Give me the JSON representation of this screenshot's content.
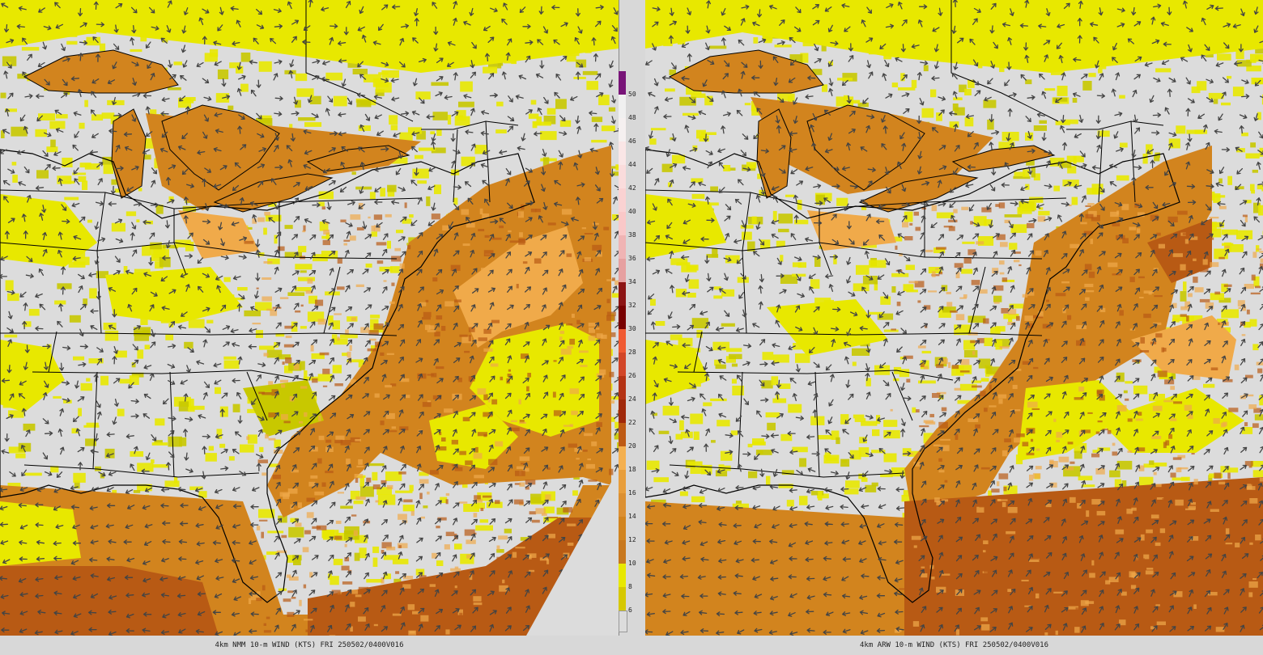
{
  "panels": [
    {
      "id": "nmm",
      "caption": "4km NMM 10-m WIND (KTS) FRI 250502/0400V016"
    },
    {
      "id": "arw",
      "caption": "4km ARW 10-m WIND (KTS) FRI 250502/0400V016"
    }
  ],
  "colorbar": {
    "levels": [
      {
        "value": "6",
        "color": "#d6c800"
      },
      {
        "value": "8",
        "color": "#e8e800"
      },
      {
        "value": "10",
        "color": "#c8781e"
      },
      {
        "value": "12",
        "color": "#d2841e"
      },
      {
        "value": "14",
        "color": "#dc9032"
      },
      {
        "value": "16",
        "color": "#e89e3c"
      },
      {
        "value": "18",
        "color": "#f4b050"
      },
      {
        "value": "20",
        "color": "#be5a14"
      },
      {
        "value": "22",
        "color": "#a0280a"
      },
      {
        "value": "24",
        "color": "#b43214"
      },
      {
        "value": "26",
        "color": "#d24628"
      },
      {
        "value": "28",
        "color": "#f05a32"
      },
      {
        "value": "30",
        "color": "#780000"
      },
      {
        "value": "32",
        "color": "#8c1414"
      },
      {
        "value": "34",
        "color": "#e6a0a0"
      },
      {
        "value": "36",
        "color": "#f0b4b4"
      },
      {
        "value": "38",
        "color": "#fac8c8"
      },
      {
        "value": "40",
        "color": "#fad2d2"
      },
      {
        "value": "42",
        "color": "#fadcdc"
      },
      {
        "value": "44",
        "color": "#fae6e6"
      },
      {
        "value": "46",
        "color": "#f5f0f0"
      },
      {
        "value": "48",
        "color": "#f0f0f0"
      },
      {
        "value": "50",
        "color": "#781478"
      }
    ],
    "background": "#dcdcdc"
  },
  "colors": {
    "land": "#dcdcdc",
    "yellow": "#e8e800",
    "olive": "#c8c800",
    "orange": "#d2841e",
    "dark_orange": "#b85a14",
    "light_orange": "#f0aa4a",
    "arrow": "#444444",
    "border": "#000000"
  }
}
